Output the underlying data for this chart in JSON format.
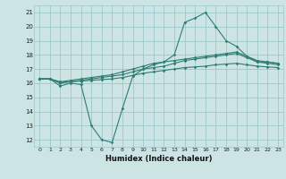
{
  "xlabel": "Humidex (Indice chaleur)",
  "ylabel": "",
  "bg_color": "#cde4e5",
  "grid_color": "#9dc8ca",
  "line_color": "#2e7d72",
  "xlim": [
    -0.5,
    23.5
  ],
  "ylim": [
    11.5,
    21.5
  ],
  "xticks": [
    0,
    1,
    2,
    3,
    4,
    5,
    6,
    7,
    8,
    9,
    10,
    11,
    12,
    13,
    14,
    15,
    16,
    17,
    18,
    19,
    20,
    21,
    22,
    23
  ],
  "yticks": [
    12,
    13,
    14,
    15,
    16,
    17,
    18,
    19,
    20,
    21
  ],
  "series": [
    [
      16.3,
      16.3,
      15.8,
      16.0,
      15.9,
      13.0,
      12.0,
      11.8,
      14.2,
      16.5,
      17.0,
      17.3,
      17.5,
      18.0,
      20.3,
      20.6,
      21.0,
      20.0,
      19.0,
      18.6,
      17.9,
      17.5,
      17.5,
      17.4
    ],
    [
      16.3,
      16.3,
      16.1,
      16.2,
      16.3,
      16.4,
      16.5,
      16.6,
      16.8,
      17.0,
      17.2,
      17.4,
      17.5,
      17.6,
      17.7,
      17.8,
      17.9,
      18.0,
      18.1,
      18.2,
      17.9,
      17.6,
      17.5,
      17.4
    ],
    [
      16.3,
      16.3,
      16.0,
      16.1,
      16.2,
      16.3,
      16.4,
      16.5,
      16.6,
      16.8,
      17.0,
      17.1,
      17.2,
      17.4,
      17.6,
      17.7,
      17.8,
      17.9,
      18.0,
      18.1,
      17.8,
      17.5,
      17.4,
      17.3
    ],
    [
      16.3,
      16.3,
      16.05,
      16.1,
      16.15,
      16.2,
      16.25,
      16.3,
      16.4,
      16.55,
      16.7,
      16.8,
      16.9,
      17.0,
      17.1,
      17.15,
      17.2,
      17.3,
      17.35,
      17.4,
      17.3,
      17.2,
      17.15,
      17.1
    ]
  ]
}
